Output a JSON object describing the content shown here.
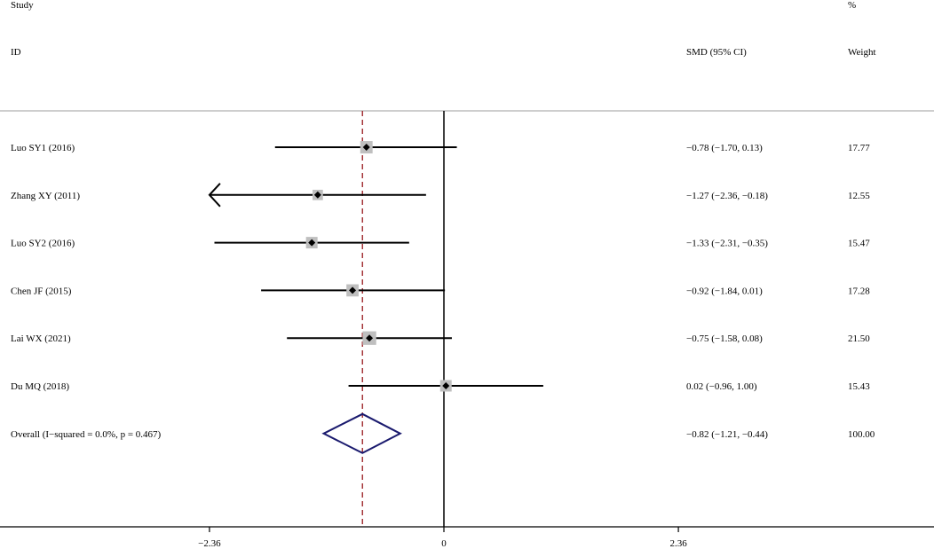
{
  "chart_data": {
    "type": "forest",
    "header": {
      "study_line1": "Study",
      "study_line2": "ID",
      "effect_label": "SMD (95% CI)",
      "weight_line1": "%",
      "weight_line2": "Weight"
    },
    "studies": [
      {
        "label": "Luo SY1 (2016)",
        "smd": -0.78,
        "ci_low": -1.7,
        "ci_high": 0.13,
        "ci_text": "−0.78 (−1.70, 0.13)",
        "weight": 17.77,
        "weight_text": "17.77"
      },
      {
        "label": "Zhang XY (2011)",
        "smd": -1.27,
        "ci_low": -2.36,
        "ci_high": -0.18,
        "ci_text": "−1.27 (−2.36, −0.18)",
        "weight": 12.55,
        "weight_text": "12.55",
        "truncated_low": true
      },
      {
        "label": "Luo SY2 (2016)",
        "smd": -1.33,
        "ci_low": -2.31,
        "ci_high": -0.35,
        "ci_text": "−1.33 (−2.31, −0.35)",
        "weight": 15.47,
        "weight_text": "15.47"
      },
      {
        "label": "Chen JF (2015)",
        "smd": -0.92,
        "ci_low": -1.84,
        "ci_high": 0.01,
        "ci_text": "−0.92 (−1.84, 0.01)",
        "weight": 17.28,
        "weight_text": "17.28"
      },
      {
        "label": "Lai WX (2021)",
        "smd": -0.75,
        "ci_low": -1.58,
        "ci_high": 0.08,
        "ci_text": "−0.75 (−1.58, 0.08)",
        "weight": 21.5,
        "weight_text": "21.50"
      },
      {
        "label": "Du MQ (2018)",
        "smd": 0.02,
        "ci_low": -0.96,
        "ci_high": 1.0,
        "ci_text": "0.02 (−0.96, 1.00)",
        "weight": 15.43,
        "weight_text": "15.43"
      }
    ],
    "overall": {
      "label": "Overall  (I−squared = 0.0%, p = 0.467)",
      "smd": -0.82,
      "ci_low": -1.21,
      "ci_high": -0.44,
      "ci_text": "−0.82 (−1.21, −0.44)",
      "weight_text": "100.00"
    },
    "x_ticks": [
      {
        "value": -2.36,
        "label": "−2.36"
      },
      {
        "value": 0,
        "label": "0"
      },
      {
        "value": 2.36,
        "label": "2.36"
      }
    ],
    "null_line": 0,
    "colors": {
      "ci_line": "#000000",
      "weight_box": "#bfbfbf",
      "point": "#000000",
      "overall_diamond": "#1a1a6e",
      "overall_dashed_line": "#a0282d",
      "header_rule": "#bdbdbd"
    }
  }
}
